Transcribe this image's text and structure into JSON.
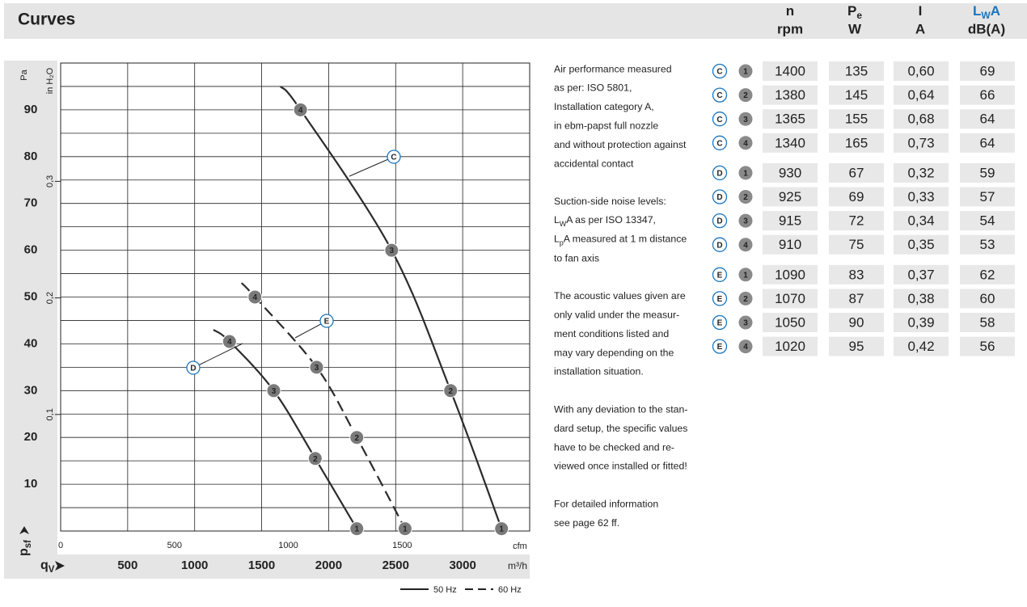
{
  "header": {
    "title": "Curves",
    "columns": [
      {
        "symbol": "n",
        "unit": "rpm"
      },
      {
        "symbol": "P",
        "sub": "e",
        "unit": "W"
      },
      {
        "symbol": "I",
        "unit": "A"
      },
      {
        "symbol": "L",
        "sub": "W",
        "suffix": "A",
        "unit": "dB(A)"
      }
    ]
  },
  "chart_data": {
    "type": "line",
    "y_label": "Pa",
    "y2_label": "in H₂O",
    "x_label": "m³/h",
    "x2_label": "cfm",
    "y_symbol": {
      "text": "p",
      "sub": "sf"
    },
    "x_symbol": {
      "text": "q",
      "sub": "V"
    },
    "xlim": [
      0,
      3500
    ],
    "xticks": [
      500,
      1000,
      1500,
      2000,
      2500,
      3000
    ],
    "x2lim": [
      0,
      2060
    ],
    "x2ticks": [
      0,
      500,
      1000,
      1500
    ],
    "ylim": [
      0,
      100
    ],
    "yticks": [
      10,
      20,
      30,
      40,
      50,
      60,
      70,
      80,
      90
    ],
    "y2lim": [
      0,
      0.4015
    ],
    "y2ticks": [
      {
        "value": 0.1,
        "label": "0,1"
      },
      {
        "value": 0.2,
        "label": "0,2"
      },
      {
        "value": 0.3,
        "label": "0,3"
      }
    ],
    "grid": true,
    "legend": [
      {
        "label": "50 Hz",
        "dashed": false
      },
      {
        "label": "60 Hz",
        "dashed": true
      }
    ],
    "series": [
      {
        "name": "C",
        "color": "#2b2b2b",
        "dashed": false,
        "x": [
          1640,
          1790,
          2470,
          2910,
          3290
        ],
        "values": [
          95,
          90,
          60,
          30,
          0.5
        ],
        "point_labels": [
          null,
          4,
          3,
          2,
          1
        ]
      },
      {
        "name": "D",
        "color": "#2b2b2b",
        "dashed": false,
        "x": [
          1140,
          1260,
          1590,
          1900,
          2210
        ],
        "values": [
          43,
          40.5,
          30,
          15.5,
          0.5
        ],
        "point_labels": [
          null,
          4,
          3,
          2,
          1
        ]
      },
      {
        "name": "E",
        "color": "#2b2b2b",
        "dashed": true,
        "x": [
          1350,
          1450,
          1910,
          2210,
          2570
        ],
        "values": [
          53,
          50,
          35,
          20,
          0.5
        ],
        "point_labels": [
          null,
          4,
          3,
          2,
          1
        ]
      }
    ]
  },
  "notes": [
    [
      "Air performance measured",
      "as per: ISO 5801,",
      "Installation category A,",
      "in ebm-papst full nozzle",
      "and without protection against",
      "accidental contact"
    ],
    [
      "Suction-side noise levels:",
      {
        "text": "L",
        "sub": "W",
        "rest": "A as per ISO 13347,"
      },
      {
        "text": "L",
        "sub": "p",
        "rest": "A measured at 1 m distance"
      },
      "to fan axis"
    ],
    [
      "The acoustic values given are",
      "only valid under the measur-",
      "ment conditions listed and",
      "may vary depending on the",
      "installation situation."
    ],
    [
      "With any deviation to the stan-",
      "dard setup, the specific values",
      "have to be checked and re-",
      "viewed once installed or fitted!"
    ],
    [
      "For detailed information",
      "see page 62 ff."
    ]
  ],
  "table": {
    "highlight_color": "#1b75bc",
    "rows": [
      {
        "curve": "C",
        "point": 1,
        "n": 1400,
        "pe": 135,
        "i": "0,60",
        "lwa": 69
      },
      {
        "curve": "C",
        "point": 2,
        "n": 1380,
        "pe": 145,
        "i": "0,64",
        "lwa": 66
      },
      {
        "curve": "C",
        "point": 3,
        "n": 1365,
        "pe": 155,
        "i": "0,68",
        "lwa": 64
      },
      {
        "curve": "C",
        "point": 4,
        "n": 1340,
        "pe": 165,
        "i": "0,73",
        "lwa": 64
      },
      {
        "curve": "D",
        "point": 1,
        "n": 930,
        "pe": 67,
        "i": "0,32",
        "lwa": 59
      },
      {
        "curve": "D",
        "point": 2,
        "n": 925,
        "pe": 69,
        "i": "0,33",
        "lwa": 57
      },
      {
        "curve": "D",
        "point": 3,
        "n": 915,
        "pe": 72,
        "i": "0,34",
        "lwa": 54
      },
      {
        "curve": "D",
        "point": 4,
        "n": 910,
        "pe": 75,
        "i": "0,35",
        "lwa": 53
      },
      {
        "curve": "E",
        "point": 1,
        "n": 1090,
        "pe": 83,
        "i": "0,37",
        "lwa": 62
      },
      {
        "curve": "E",
        "point": 2,
        "n": 1070,
        "pe": 87,
        "i": "0,38",
        "lwa": 60
      },
      {
        "curve": "E",
        "point": 3,
        "n": 1050,
        "pe": 90,
        "i": "0,39",
        "lwa": 58
      },
      {
        "curve": "E",
        "point": 4,
        "n": 1020,
        "pe": 95,
        "i": "0,42",
        "lwa": 56
      }
    ]
  }
}
